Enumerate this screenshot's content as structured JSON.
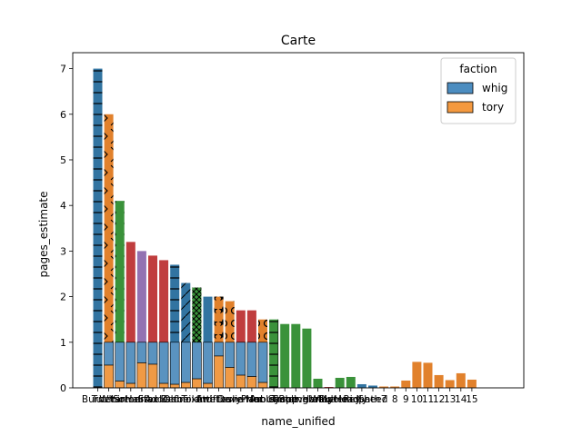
{
  "chart_data": {
    "type": "bar",
    "title": "Carte",
    "xlabel": "name_unified",
    "ylabel": "pages_estimate",
    "ylim": [
      0,
      7.35
    ],
    "yticks": [
      0,
      1,
      2,
      3,
      4,
      5,
      6,
      7
    ],
    "grid": false,
    "legend": {
      "title": "faction",
      "placement": "top-right",
      "entries": [
        {
          "label": "whig",
          "color": "#4c8dc0"
        },
        {
          "label": "tory",
          "color": "#f4993f"
        }
      ]
    },
    "colors": {
      "blue": "#3274a1",
      "orange": "#e1812c",
      "green": "#3a923a",
      "red": "#c03d3e",
      "purple": "#9372b2",
      "light_blue": "#5a93c0",
      "light_orange": "#f09a45"
    },
    "bars": [
      {
        "value": 7.0,
        "color": "blue",
        "hatch": "hline"
      },
      {
        "value": 6.0,
        "color": "orange",
        "hatch": "chevron"
      },
      {
        "value": 4.1,
        "color": "green",
        "hatch": "dot"
      },
      {
        "value": 3.2,
        "color": "red",
        "hatch": ""
      },
      {
        "value": 3.0,
        "color": "purple",
        "hatch": ""
      },
      {
        "value": 2.9,
        "color": "red",
        "hatch": ""
      },
      {
        "value": 2.8,
        "color": "red",
        "hatch": ""
      },
      {
        "value": 2.7,
        "color": "blue",
        "hatch": "hline"
      },
      {
        "value": 2.3,
        "color": "blue",
        "hatch": "diag"
      },
      {
        "value": 2.2,
        "color": "green",
        "hatch": "cross"
      },
      {
        "value": 2.0,
        "color": "blue",
        "hatch": ""
      },
      {
        "value": 2.0,
        "color": "orange",
        "hatch": "star"
      },
      {
        "value": 1.9,
        "color": "orange",
        "hatch": "circle"
      },
      {
        "value": 1.7,
        "color": "red",
        "hatch": ""
      },
      {
        "value": 1.7,
        "color": "red",
        "hatch": ""
      },
      {
        "value": 1.5,
        "color": "orange",
        "hatch": "circle"
      },
      {
        "value": 1.5,
        "color": "green",
        "hatch": "vhline"
      },
      {
        "value": 1.4,
        "color": "green",
        "hatch": ""
      },
      {
        "value": 1.4,
        "color": "green",
        "hatch": ""
      },
      {
        "value": 1.3,
        "color": "green",
        "hatch": ""
      },
      {
        "value": 0.2,
        "color": "green",
        "hatch": ""
      },
      {
        "value": 0.02,
        "color": "red",
        "hatch": ""
      },
      {
        "value": 0.22,
        "color": "green",
        "hatch": ""
      },
      {
        "value": 0.24,
        "color": "green",
        "hatch": ""
      },
      {
        "value": 0.08,
        "color": "blue",
        "hatch": ""
      },
      {
        "value": 0.05,
        "color": "blue",
        "hatch": ""
      },
      {
        "value": 0.03,
        "color": "orange",
        "hatch": ""
      },
      {
        "value": 0.03,
        "color": "orange",
        "hatch": ""
      },
      {
        "value": 0.16,
        "color": "orange",
        "hatch": ""
      },
      {
        "value": 0.57,
        "color": "orange",
        "hatch": ""
      },
      {
        "value": 0.55,
        "color": "orange",
        "hatch": ""
      },
      {
        "value": 0.28,
        "color": "orange",
        "hatch": ""
      },
      {
        "value": 0.17,
        "color": "orange",
        "hatch": ""
      },
      {
        "value": 0.32,
        "color": "orange",
        "hatch": ""
      },
      {
        "value": 0.18,
        "color": "orange",
        "hatch": ""
      }
    ],
    "overlay_bars": [
      {
        "index": 1,
        "whig": 0.5,
        "tory": 0.5
      },
      {
        "index": 2,
        "whig": 0.85,
        "tory": 0.15
      },
      {
        "index": 3,
        "whig": 0.9,
        "tory": 0.1
      },
      {
        "index": 4,
        "whig": 0.45,
        "tory": 0.55
      },
      {
        "index": 5,
        "whig": 0.48,
        "tory": 0.52
      },
      {
        "index": 6,
        "whig": 0.9,
        "tory": 0.1
      },
      {
        "index": 7,
        "whig": 0.92,
        "tory": 0.08
      },
      {
        "index": 8,
        "whig": 0.88,
        "tory": 0.12
      },
      {
        "index": 9,
        "whig": 0.8,
        "tory": 0.2
      },
      {
        "index": 10,
        "whig": 0.9,
        "tory": 0.1
      },
      {
        "index": 11,
        "whig": 0.3,
        "tory": 0.7
      },
      {
        "index": 12,
        "whig": 0.55,
        "tory": 0.45
      },
      {
        "index": 13,
        "whig": 0.72,
        "tory": 0.28
      },
      {
        "index": 14,
        "whig": 0.75,
        "tory": 0.25
      },
      {
        "index": 15,
        "whig": 0.88,
        "tory": 0.12
      }
    ],
    "xtick_labels": [
      "Burnet",
      "Tutchin",
      "Wharton",
      "Somers",
      "Halifax",
      "Steele",
      "Addison",
      "Defoe",
      "Oldmixon",
      "Toland",
      "Swift",
      "Atterbury",
      "Leslie",
      "Davenant",
      "Prior",
      "Manley",
      "Arbuthnot",
      "Trapp",
      "Sacheverell",
      "Bolingbroke",
      "Harley",
      "Walpole",
      "Pulteney",
      "Hoadly",
      "Ridpath",
      "Sheed",
      "7",
      "8",
      "9",
      "10",
      "11",
      "12",
      "13",
      "14",
      "15"
    ]
  }
}
